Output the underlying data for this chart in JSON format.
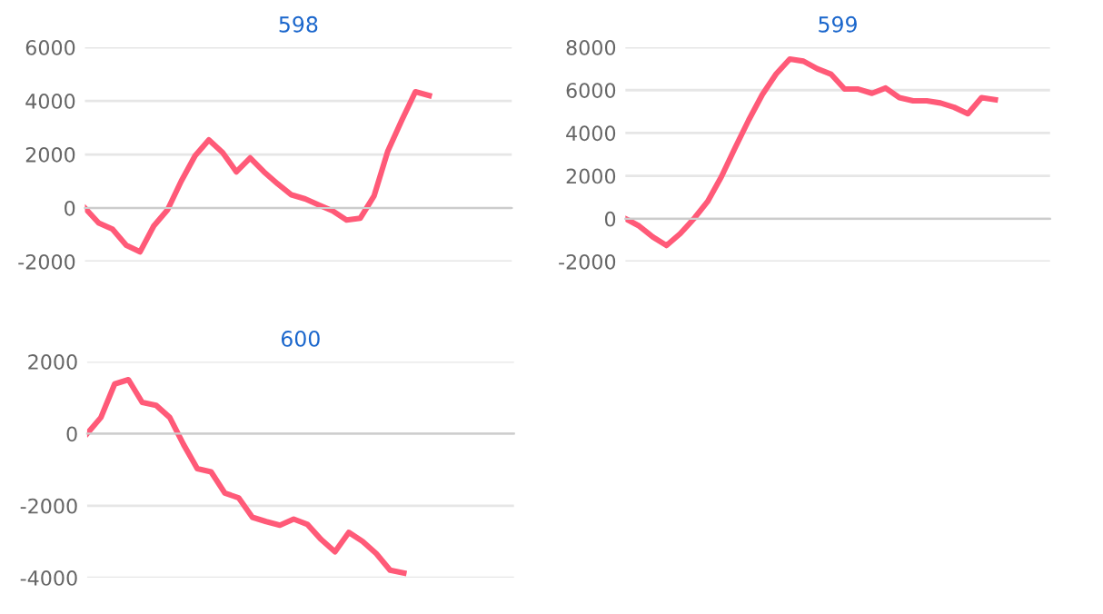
{
  "chart_data": [
    {
      "type": "line",
      "title": "598",
      "categories": [
        null,
        null,
        null,
        null,
        null,
        null,
        null,
        null,
        null,
        null,
        null,
        null,
        null,
        null,
        null,
        null,
        null,
        null,
        null,
        null,
        null,
        null,
        null,
        null,
        null,
        null,
        null,
        null,
        null,
        null,
        null,
        null
      ],
      "series": [
        {
          "color": "#ff5a78",
          "values": [
            0,
            -560,
            -790,
            -1390,
            -1640,
            -670,
            -70,
            1010,
            1950,
            2540,
            2070,
            1350,
            1870,
            1350,
            900,
            490,
            340,
            110,
            -110,
            -450,
            -380,
            450,
            2130,
            3260,
            4340,
            4200,
            null,
            null,
            null,
            null,
            null,
            null
          ]
        }
      ],
      "ylim": [
        -2000,
        6000
      ],
      "yticks": [
        -2000,
        0,
        2000,
        4000,
        6000
      ],
      "grid": "y",
      "tick_labels": "y"
    },
    {
      "type": "line",
      "title": "599",
      "categories": [
        null,
        null,
        null,
        null,
        null,
        null,
        null,
        null,
        null,
        null,
        null,
        null,
        null,
        null,
        null,
        null,
        null,
        null,
        null,
        null,
        null,
        null,
        null,
        null,
        null,
        null,
        null,
        null,
        null,
        null,
        null,
        null
      ],
      "series": [
        {
          "color": "#ff5a78",
          "values": [
            0,
            -340,
            -850,
            -1250,
            -700,
            0,
            800,
            1950,
            3300,
            4600,
            5800,
            6750,
            7450,
            7350,
            7000,
            6750,
            6050,
            6050,
            5850,
            6100,
            5650,
            5500,
            5500,
            5400,
            5200,
            4900,
            5650,
            5550,
            null,
            null,
            null,
            null
          ]
        }
      ],
      "ylim": [
        -2000,
        8000
      ],
      "yticks": [
        -2000,
        0,
        2000,
        4000,
        6000,
        8000
      ],
      "grid": "y",
      "tick_labels": "y"
    },
    {
      "type": "line",
      "title": "600",
      "categories": [
        null,
        null,
        null,
        null,
        null,
        null,
        null,
        null,
        null,
        null,
        null,
        null,
        null,
        null,
        null,
        null,
        null,
        null,
        null,
        null,
        null,
        null,
        null,
        null,
        null,
        null,
        null,
        null,
        null,
        null,
        null,
        null
      ],
      "series": [
        {
          "color": "#ff5a78",
          "values": [
            0,
            450,
            1380,
            1500,
            870,
            790,
            450,
            -300,
            -970,
            -1060,
            -1650,
            -1780,
            -2320,
            -2440,
            -2540,
            -2370,
            -2520,
            -2940,
            -3280,
            -2740,
            -2990,
            -3330,
            -3790,
            -3870,
            null,
            null,
            null,
            null,
            null,
            null,
            null,
            null
          ]
        }
      ],
      "ylim": [
        -4000,
        2000
      ],
      "yticks": [
        -4000,
        -2000,
        0,
        2000
      ],
      "grid": "y",
      "tick_labels": "y"
    }
  ]
}
